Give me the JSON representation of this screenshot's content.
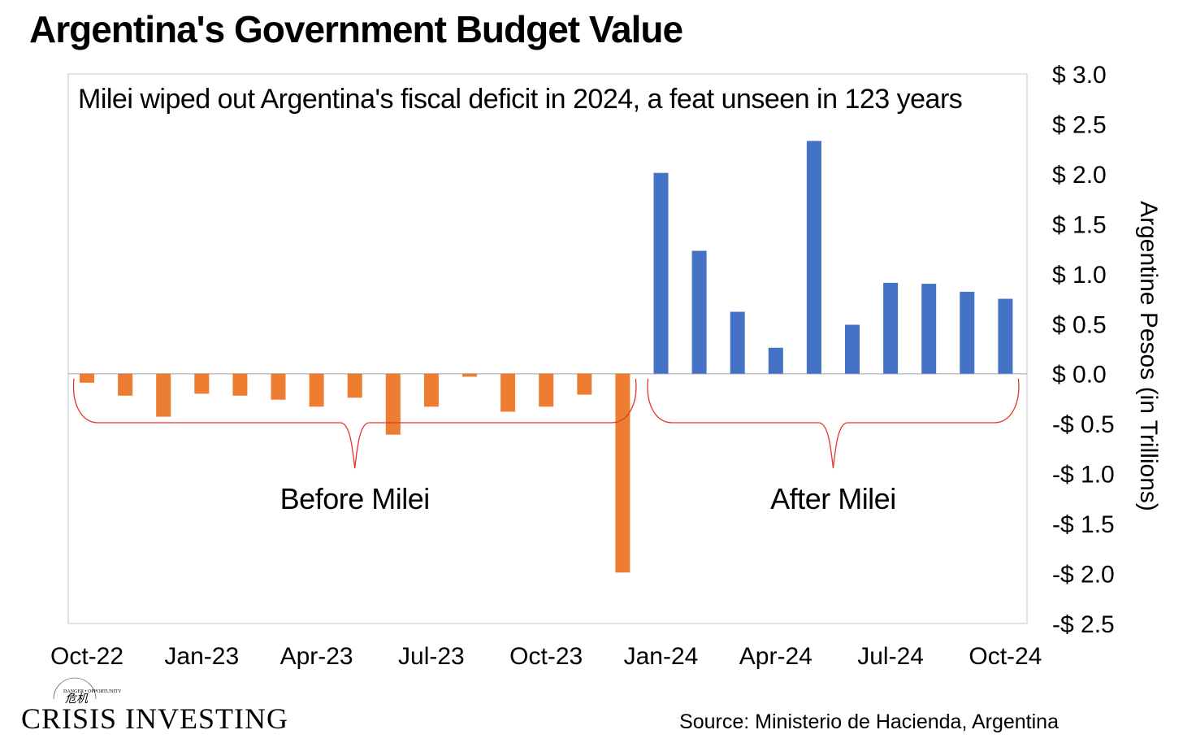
{
  "title": "Argentina's Government Budget Value",
  "source": "Source: Ministerio de Hacienda, Argentina",
  "logo": {
    "text": "CRISIS INVESTING",
    "tagline": "DANGER • OPPORTUNITY",
    "glyph": "危机"
  },
  "colors": {
    "deficit": "#ED7D31",
    "surplus": "#4472C4",
    "bracket": "#E8332A",
    "axis": "#D9D9D9",
    "zero_line": "#BFBFBF"
  },
  "chart_data": {
    "type": "bar",
    "title": "Argentina's Government Budget Value",
    "annotation": "Milei wiped out Argentina's fiscal deficit in 2024, a feat unseen in 123 years",
    "xlabel": "",
    "ylabel": "Argentine Pesos (in Trillions)",
    "ylim": [
      -2.5,
      3.0
    ],
    "y_ticks": [
      3.0,
      2.5,
      2.0,
      1.5,
      1.0,
      0.5,
      0.0,
      -0.5,
      -1.0,
      -1.5,
      -2.0,
      -2.5
    ],
    "y_tick_labels": [
      "$ 3.0",
      "$ 2.5",
      "$ 2.0",
      "$ 1.5",
      "$ 1.0",
      "$ 0.5",
      "$ 0.0",
      "-$ 0.5",
      "-$ 1.0",
      "-$ 1.5",
      "-$ 2.0",
      "-$ 2.5"
    ],
    "x_tick_labels": [
      "Oct-22",
      "Jan-23",
      "Apr-23",
      "Jul-23",
      "Oct-23",
      "Jan-24",
      "Apr-24",
      "Jul-24",
      "Oct-24"
    ],
    "categories": [
      "Oct-22",
      "Nov-22",
      "Dec-22",
      "Jan-23",
      "Feb-23",
      "Mar-23",
      "Apr-23",
      "May-23",
      "Jun-23",
      "Jul-23",
      "Aug-23",
      "Sep-23",
      "Oct-23",
      "Nov-23",
      "Dec-23",
      "Jan-24",
      "Feb-24",
      "Mar-24",
      "Apr-24",
      "May-24",
      "Jun-24",
      "Jul-24",
      "Aug-24",
      "Sep-24",
      "Oct-24"
    ],
    "values": [
      -0.09,
      -0.22,
      -0.43,
      -0.2,
      -0.22,
      -0.26,
      -0.33,
      -0.24,
      -0.61,
      -0.33,
      -0.03,
      -0.38,
      -0.33,
      -0.21,
      -1.99,
      2.01,
      1.23,
      0.62,
      0.26,
      2.33,
      0.49,
      0.91,
      0.9,
      0.82,
      0.75
    ],
    "groups": [
      {
        "label": "Before Milei",
        "first_index": 0,
        "last_index": 14,
        "color": "#ED7D31"
      },
      {
        "label": "After Milei",
        "first_index": 15,
        "last_index": 24,
        "color": "#4472C4"
      }
    ],
    "grid": false,
    "legend": "none"
  }
}
